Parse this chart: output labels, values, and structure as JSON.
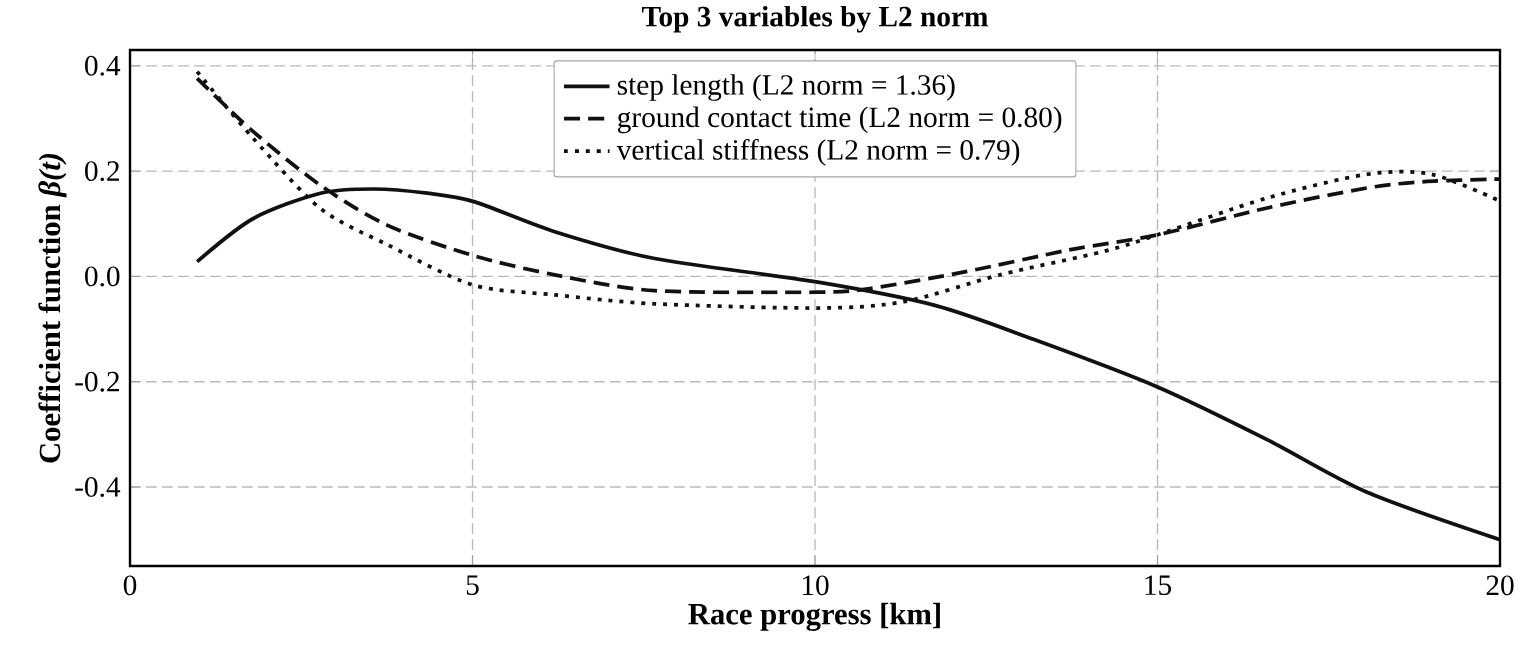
{
  "chart_data": {
    "type": "line",
    "title": "Top 3 variables by L2 norm",
    "xlabel": "Race progress [km]",
    "ylabel": "Coefficient function *β(t)*",
    "xlim": [
      0,
      20
    ],
    "ylim": [
      -0.55,
      0.43
    ],
    "xticks": [
      0,
      5,
      10,
      15,
      20
    ],
    "yticks": [
      -0.4,
      -0.2,
      {
        "value": 0,
        "label": "0.0"
      },
      0.2,
      0.4
    ],
    "grid": true,
    "legend": "top",
    "series": [
      {
        "name": "step length (L2 norm = 1.36)",
        "color": "#111111",
        "line_style": "solid",
        "x": [
          0.98,
          1.8,
          2.78,
          3.56,
          4.34,
          5.02,
          6.2,
          7.66,
          10.0,
          11.75,
          13.2,
          15,
          16.6,
          18.06,
          20
        ],
        "values": [
          0.028,
          0.11,
          0.158,
          0.166,
          0.158,
          0.142,
          0.085,
          0.034,
          -0.01,
          -0.055,
          -0.12,
          -0.21,
          -0.31,
          -0.41,
          -0.5
        ]
      },
      {
        "name": "ground contact time (L2 norm = 0.80)",
        "color": "#111111",
        "line_style": "dashed",
        "x": [
          0.98,
          1.8,
          2.78,
          3.76,
          5,
          6.2,
          7.66,
          10.05,
          10.8,
          12.2,
          13.7,
          15,
          16.6,
          18.06,
          18.9,
          20
        ],
        "values": [
          0.376,
          0.275,
          0.173,
          0.097,
          0.04,
          0.003,
          -0.027,
          -0.03,
          -0.023,
          0.009,
          0.05,
          0.079,
          0.13,
          0.168,
          0.18,
          0.185
        ]
      },
      {
        "name": "vertical stiffness (L2 norm = 0.79)",
        "color": "#111111",
        "line_style": "dotted",
        "x": [
          0.98,
          1.8,
          2.78,
          3.76,
          5,
          6.2,
          7.66,
          10.05,
          11.3,
          12.7,
          14.2,
          15,
          16.6,
          18.06,
          19,
          20
        ],
        "values": [
          0.389,
          0.262,
          0.129,
          0.06,
          -0.016,
          -0.035,
          -0.052,
          -0.06,
          -0.048,
          0.003,
          0.047,
          0.079,
          0.149,
          0.194,
          0.194,
          0.143
        ]
      }
    ]
  }
}
